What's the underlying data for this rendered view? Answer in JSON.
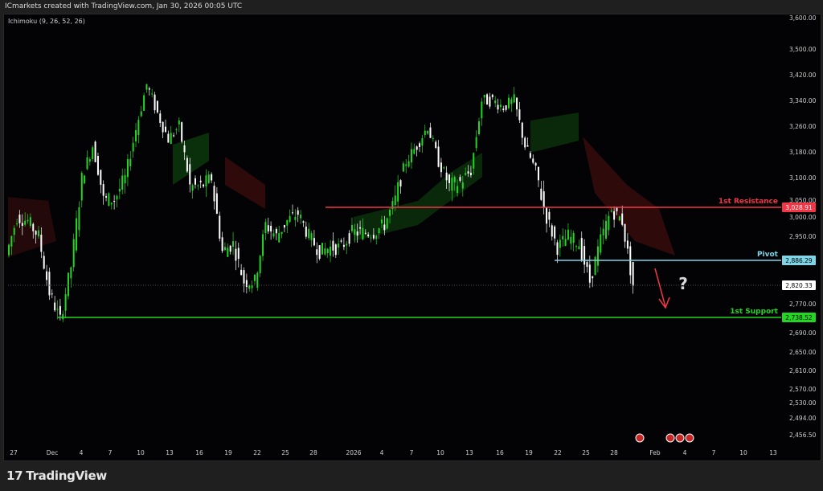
{
  "header": {
    "caption": "ICmarkets created with TradingView.com, Jan 30, 2026 00:05 UTC"
  },
  "indicator": {
    "label": "Ichimoku (9, 26, 52, 26)"
  },
  "brand": {
    "name": "TradingView"
  },
  "chart_data": {
    "type": "candlestick",
    "y_ticks": [
      "3,600.00",
      "3,500.00",
      "3,420.00",
      "3,340.00",
      "3,260.00",
      "3,180.00",
      "3,100.00",
      "3,050.00",
      "3,000.00",
      "2,950.00",
      "2,770.00",
      "2,690.00",
      "2,650.00",
      "2,610.00",
      "2,570.00",
      "2,530.00",
      "2,494.00",
      "2,456.50"
    ],
    "x_ticks": [
      "27",
      "Dec",
      "4",
      "7",
      "10",
      "13",
      "16",
      "19",
      "22",
      "25",
      "28",
      "2026",
      "4",
      "7",
      "10",
      "13",
      "16",
      "19",
      "22",
      "25",
      "28",
      "Feb",
      "4",
      "7",
      "10",
      "13"
    ],
    "approx_closes": [
      2900,
      3000,
      2990,
      2950,
      2800,
      2730,
      2870,
      3100,
      3200,
      3050,
      3050,
      3100,
      3250,
      3390,
      3300,
      3220,
      3260,
      3080,
      3080,
      3100,
      2910,
      2930,
      2830,
      2830,
      2980,
      2950,
      2990,
      3010,
      2950,
      2910,
      2920,
      2920,
      2960,
      2960,
      2960,
      2980,
      3050,
      3150,
      3200,
      3260,
      3150,
      3080,
      3090,
      3120,
      3340,
      3340,
      3320,
      3340,
      3200,
      3120,
      3000,
      2920,
      2950,
      2930,
      2830,
      2940,
      3020,
      2990,
      2820
    ],
    "levels": [
      {
        "label": "1st Resistance",
        "value": "3,028.91",
        "color": "#f23645"
      },
      {
        "label": "Pivot",
        "value": "2,886.29",
        "color": "#7fd4e6"
      },
      {
        "label": "1st Support",
        "value": "2,738.52",
        "color": "#22d622"
      }
    ],
    "current_price": "2,820.33",
    "annotation": "?",
    "colors": {
      "up": "#22d622",
      "down": "#ffffff",
      "cloud_bull": "#0d3b0d",
      "cloud_bear": "#3b0d0d"
    }
  }
}
